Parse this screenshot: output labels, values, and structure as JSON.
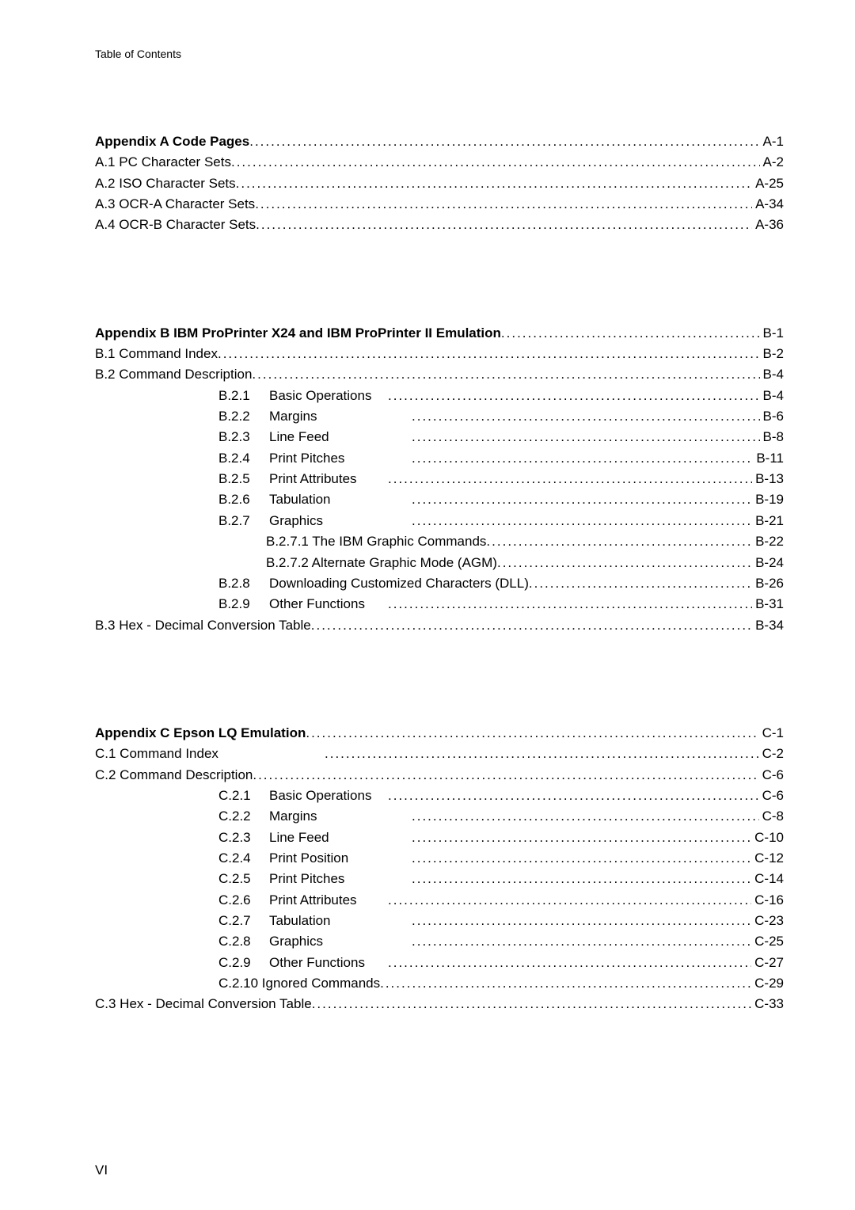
{
  "running_head": "Table of Contents",
  "footer": "VI",
  "sections": {
    "A": {
      "head": {
        "label": "Appendix A   Code Pages",
        "page": "A-1",
        "bold": true,
        "indent": 0
      },
      "items": [
        {
          "label": "A.1  PC Character Sets ",
          "page": "A-2",
          "indent": 0
        },
        {
          "label": "A.2  ISO Character Sets",
          "page": "A-25",
          "indent": 0
        },
        {
          "label": "A.3  OCR-A Character Sets",
          "page": "A-34",
          "indent": 0
        },
        {
          "label": "A.4  OCR-B Character Sets",
          "page": "A-36",
          "indent": 0
        }
      ]
    },
    "B": {
      "head": {
        "label": "Appendix B  IBM ProPrinter X24 and IBM ProPrinter II Emulation",
        "page": "B-1",
        "bold": true,
        "indent": 0
      },
      "items": [
        {
          "label": "B.1      Command Index",
          "page": "B-2",
          "indent": 0
        },
        {
          "label": "B.2      Command Description",
          "page": "B-4",
          "indent": 0
        },
        {
          "code": "B.2.1",
          "text": "Basic Operations",
          "page": "B-4",
          "indent": 2,
          "wide": false
        },
        {
          "code": "B.2.2",
          "text": "Margins",
          "page": "B-6",
          "indent": 2,
          "wide": true
        },
        {
          "code": "B.2.3",
          "text": "Line Feed",
          "page": "B-8",
          "indent": 2,
          "wide": true
        },
        {
          "code": "B.2.4",
          "text": "Print Pitches",
          "page": "B-11",
          "indent": 2,
          "wide": true
        },
        {
          "code": "B.2.5",
          "text": "Print Attributes",
          "page": "B-13",
          "indent": 2,
          "wide": false
        },
        {
          "code": "B.2.6",
          "text": "Tabulation",
          "page": "B-19",
          "indent": 2,
          "wide": true
        },
        {
          "code": "B.2.7",
          "text": "Graphics",
          "page": "B-21",
          "indent": 2,
          "wide": true
        },
        {
          "label": "B.2.7.1  The IBM Graphic Commands  ",
          "page": "B-22",
          "indent": 3
        },
        {
          "label": "B.2.7.2  Alternate Graphic Mode (AGM)",
          "page": "B-24",
          "indent": 3
        },
        {
          "code": "B.2.8",
          "text": "Downloading Customized Characters (DLL)",
          "page": "B-26",
          "indent": 2,
          "wide": false
        },
        {
          "code": "B.2.9",
          "text": "Other Functions",
          "page": "B-31",
          "indent": 2,
          "wide": false
        },
        {
          "label": "B.3  Hex - Decimal Conversion Table",
          "page": "B-34",
          "indent": 0
        }
      ]
    },
    "C": {
      "head": {
        "label": "Appendix C Epson LQ Emulation",
        "page": "C-1",
        "bold": true,
        "indent": 0
      },
      "items": [
        {
          "label": "C.1  Command Index     ",
          "page": "C-2",
          "indent": 0,
          "wide": true
        },
        {
          "label": "C.2  Command Description",
          "page": "C-6",
          "indent": 0
        },
        {
          "code": "C.2.1",
          "text": "Basic Operations",
          "page": "C-6",
          "indent": 2,
          "wide": false
        },
        {
          "code": "C.2.2",
          "text": "Margins",
          "page": "C-8",
          "indent": 2,
          "wide": true
        },
        {
          "code": "C.2.3",
          "text": "Line Feed",
          "page": "C-10",
          "indent": 2,
          "wide": true
        },
        {
          "code": "C.2.4",
          "text": "Print Position",
          "page": "C-12",
          "indent": 2,
          "wide": true
        },
        {
          "code": "C.2.5",
          "text": "Print Pitches",
          "page": "C-14",
          "indent": 2,
          "wide": true
        },
        {
          "code": "C.2.6",
          "text": "Print Attributes",
          "page": "C-16",
          "indent": 2,
          "wide": false
        },
        {
          "code": "C.2.7",
          "text": "Tabulation",
          "page": "C-23",
          "indent": 2,
          "wide": true
        },
        {
          "code": "C.2.8",
          "text": "Graphics",
          "page": "C-25",
          "indent": 2,
          "wide": true
        },
        {
          "code": "C.2.9",
          "text": "Other Functions",
          "page": "C-27",
          "indent": 2,
          "wide": false
        },
        {
          "label": "C.2.10 Ignored Commands",
          "page": "C-29",
          "indent": 2
        },
        {
          "label": "C.3  Hex - Decimal Conversion Table",
          "page": "C-33",
          "indent": 0
        }
      ]
    }
  }
}
